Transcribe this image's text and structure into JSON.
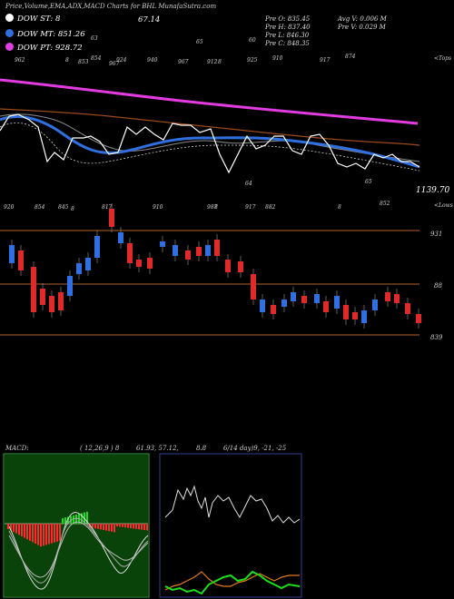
{
  "header": {
    "title": "Price,Volume,EMA,ADX,MACD Charts for BHL MunafaSutra.com"
  },
  "legend": [
    {
      "label": "DOW ST: 8",
      "color": "#ffffff"
    },
    {
      "label": "DOW MT: 851.26",
      "color": "#2f6fe0"
    },
    {
      "label": "DOW PT: 928.72",
      "color": "#e040e0"
    }
  ],
  "top_value": "67.14",
  "info": {
    "c1": [
      "Pre O: 835.45",
      "Pre H: 837.40",
      "Pre L: 846.30",
      "Pre C: 848.35"
    ],
    "c2": [
      "Avg V: 0.006 M",
      "Pre V: 0.029 M"
    ]
  },
  "right_labels": {
    "tops": "<Tops",
    "lows": "<Lows",
    "last": "1139.70"
  },
  "top_small_labels": [
    "962",
    "8",
    "853",
    "854",
    "967",
    "924",
    "940",
    "967",
    "912",
    "8",
    "925",
    "910",
    "917",
    "874",
    "63",
    "65",
    "60"
  ],
  "bottom_small_labels": [
    "920",
    "854",
    "845",
    "8",
    "817",
    "910",
    "987",
    "8",
    "917",
    "882",
    "64",
    "8",
    "65",
    "852"
  ],
  "price_levels": [
    "931",
    "88",
    "839"
  ],
  "macd_header": {
    "label": "MACD:",
    "params": "( 12,26,9 ) 8",
    "v1": "61.93, 57.12,",
    "v2": "8.8"
  },
  "adx_header": {
    "label": "6/14  day)9, -21, -25"
  },
  "chart_data": {
    "type": "line",
    "series": [
      {
        "color": "#ffffff",
        "values": [
          830,
          825,
          832,
          836,
          850,
          855,
          845,
          838,
          825,
          820,
          822,
          828,
          833,
          836,
          830,
          826,
          824,
          829,
          834,
          838,
          842,
          840,
          832,
          826,
          822,
          820,
          818,
          815,
          813,
          812,
          815,
          820,
          822,
          818,
          812,
          808,
          805,
          803,
          802
        ]
      },
      {
        "color": "#ff2a2a",
        "values": [
          -8,
          -10,
          -12,
          -11,
          -9,
          -6,
          -3,
          1,
          5,
          7,
          6,
          3,
          -2,
          -6,
          -9,
          -10,
          -8,
          -5,
          -3,
          -1
        ]
      },
      {
        "color": "#1fdc1f",
        "values": [
          -5,
          2,
          6,
          9,
          11,
          9,
          6,
          4,
          3,
          5,
          8,
          10,
          7,
          4,
          2,
          0,
          -1,
          -2,
          -2,
          -3
        ]
      }
    ]
  }
}
